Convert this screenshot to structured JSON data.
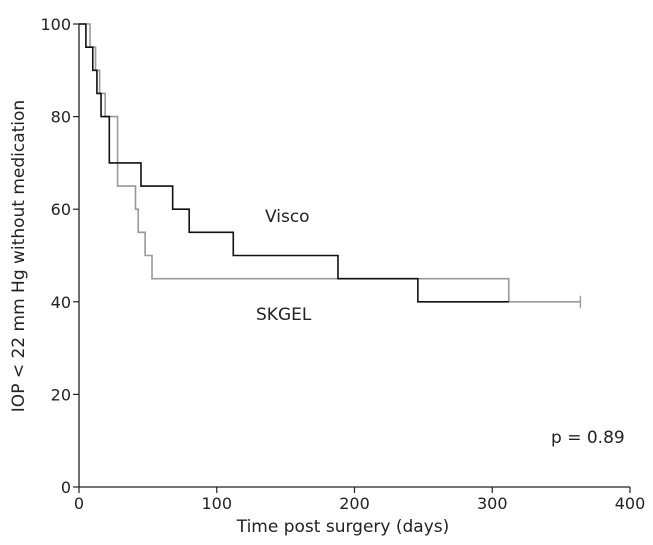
{
  "chart_data": {
    "type": "line",
    "step": true,
    "xlabel": "Time post surgery (days)",
    "ylabel": "IOP < 22 mm Hg without medication",
    "xlim": [
      0,
      400
    ],
    "ylim": [
      0,
      100
    ],
    "xticks": [
      0,
      100,
      200,
      300,
      400
    ],
    "yticks": [
      0,
      20,
      40,
      60,
      80,
      100
    ],
    "grid": false,
    "annotation": "p = 0.89",
    "series": [
      {
        "name": "Visco",
        "color": "#111111",
        "x": [
          0,
          5,
          10,
          13,
          16,
          22,
          45,
          68,
          80,
          112,
          188,
          246,
          312
        ],
        "y": [
          100,
          95,
          90,
          85,
          80,
          70,
          65,
          60,
          55,
          50,
          45,
          40,
          40
        ]
      },
      {
        "name": "SKGEL",
        "color": "#999999",
        "x": [
          0,
          8,
          12,
          15,
          19,
          28,
          41,
          43,
          48,
          53,
          56,
          312,
          364
        ],
        "y": [
          100,
          95,
          90,
          85,
          80,
          65,
          60,
          55,
          50,
          45,
          45,
          40,
          40
        ]
      }
    ]
  }
}
